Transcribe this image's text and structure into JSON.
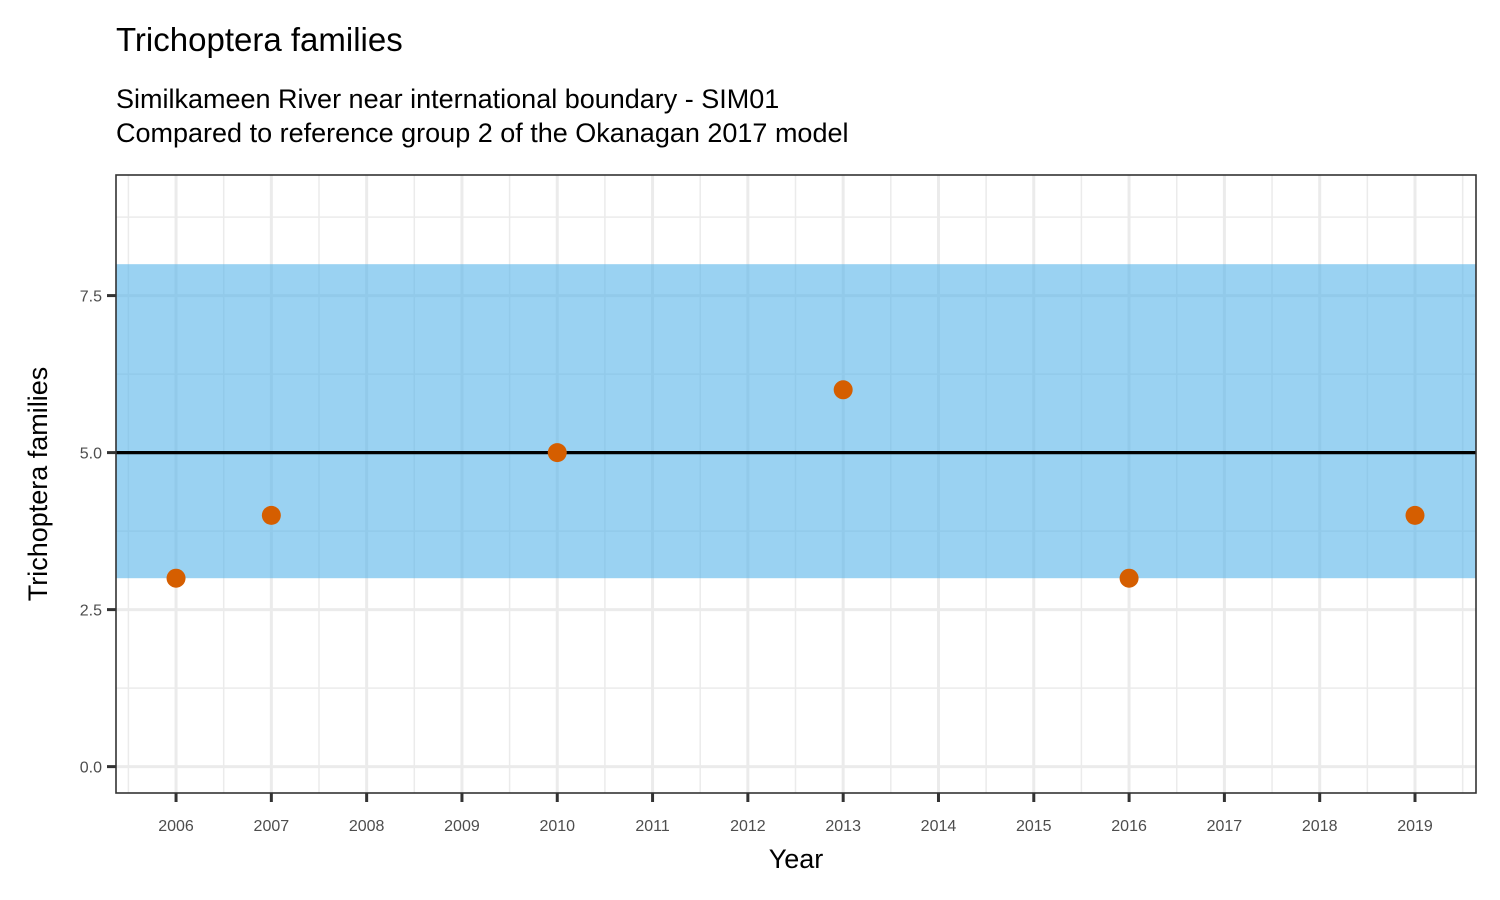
{
  "chart_data": {
    "type": "scatter",
    "title": "Trichoptera families",
    "subtitle_lines": [
      "Similkameen River near international boundary - SIM01",
      "Compared to reference group 2 of the Okanagan 2017 model"
    ],
    "xlabel": "Year",
    "ylabel": "Trichoptera families",
    "xlim": [
      2005.37,
      2019.64
    ],
    "ylim": [
      -0.42,
      9.42
    ],
    "x_ticks": [
      2006,
      2007,
      2008,
      2009,
      2010,
      2011,
      2012,
      2013,
      2014,
      2015,
      2016,
      2017,
      2018,
      2019
    ],
    "x_tick_labels": [
      "2006",
      "2007",
      "2008",
      "2009",
      "2010",
      "2011",
      "2012",
      "2013",
      "2014",
      "2015",
      "2016",
      "2017",
      "2018",
      "2019"
    ],
    "y_ticks": [
      0,
      2.5,
      5,
      7.5
    ],
    "y_tick_labels": [
      "0.0",
      "2.5",
      "5.0",
      "7.5"
    ],
    "y_minor_ticks": [
      1.25,
      3.75,
      6.25,
      8.75
    ],
    "grid": true,
    "legend": "none",
    "reference_band": {
      "ymin": 3,
      "ymax": 8,
      "color": "#56B4E9",
      "opacity": 0.6
    },
    "reference_line": {
      "y": 5,
      "color": "#000000"
    },
    "series": [
      {
        "name": "observed",
        "color": "#D55E00",
        "x": [
          2006,
          2007,
          2010,
          2013,
          2016,
          2019
        ],
        "y": [
          3,
          4,
          5,
          6,
          3,
          4
        ]
      }
    ]
  }
}
